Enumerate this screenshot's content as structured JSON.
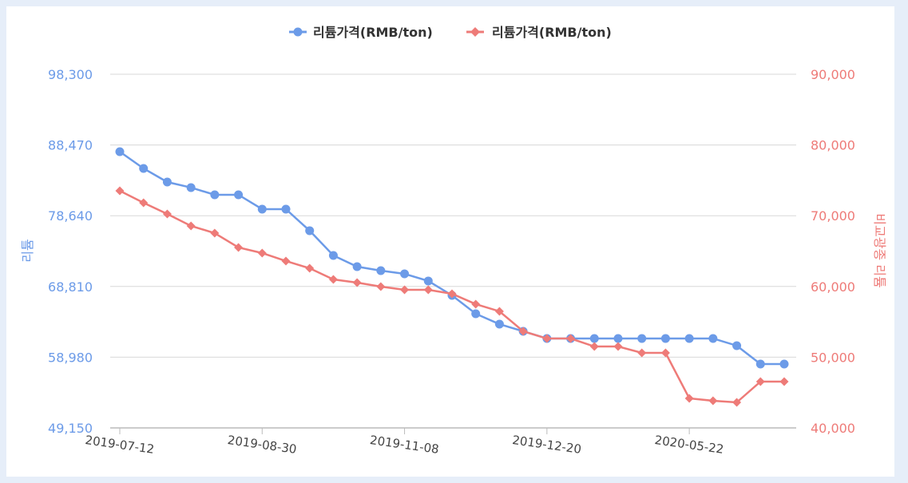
{
  "chart_data": {
    "type": "line",
    "legend_position": "top",
    "grid": true,
    "categories": [
      "2019-07-12",
      "",
      "",
      "",
      "",
      "",
      "2019-08-30",
      "",
      "",
      "",
      "",
      "",
      "2019-11-08",
      "",
      "",
      "",
      "",
      "",
      "2019-12-20",
      "",
      "",
      "",
      "",
      "",
      "2020-05-22",
      "",
      "",
      "",
      ""
    ],
    "left_axis": {
      "label": "리튬",
      "ylim": [
        49150,
        98300
      ],
      "ticks": [
        "49,150",
        "58,980",
        "68,810",
        "78,640",
        "88,470",
        "98,300"
      ],
      "color": "#6c9be8"
    },
    "right_axis": {
      "label": "비교광종 리튬",
      "ylim": [
        40000,
        90000
      ],
      "ticks": [
        "40,000",
        "50,000",
        "60,000",
        "70,000",
        "80,000",
        "90,000"
      ],
      "color": "#ee7b78"
    },
    "series": [
      {
        "name": "리튬가격(RMB/ton)",
        "axis": "left",
        "color": "#6c9be8",
        "marker": "circle",
        "values": [
          87540,
          85210,
          83320,
          82550,
          81550,
          81550,
          79550,
          79550,
          76560,
          73120,
          71560,
          71010,
          70560,
          69570,
          67570,
          65020,
          63570,
          62580,
          61580,
          61580,
          61580,
          61580,
          61580,
          61580,
          61580,
          61580,
          60580,
          58030,
          58030
        ]
      },
      {
        "name": "리튬가격(RMB/ton)",
        "axis": "right",
        "color": "#ee7b78",
        "marker": "diamond",
        "values": [
          73520,
          71830,
          70250,
          68560,
          67540,
          65510,
          64720,
          63590,
          62570,
          60990,
          60540,
          59980,
          59530,
          59530,
          58960,
          57500,
          56480,
          53660,
          52640,
          52640,
          51510,
          51510,
          50610,
          50610,
          44180,
          43840,
          43610,
          46550,
          46550
        ]
      }
    ]
  }
}
